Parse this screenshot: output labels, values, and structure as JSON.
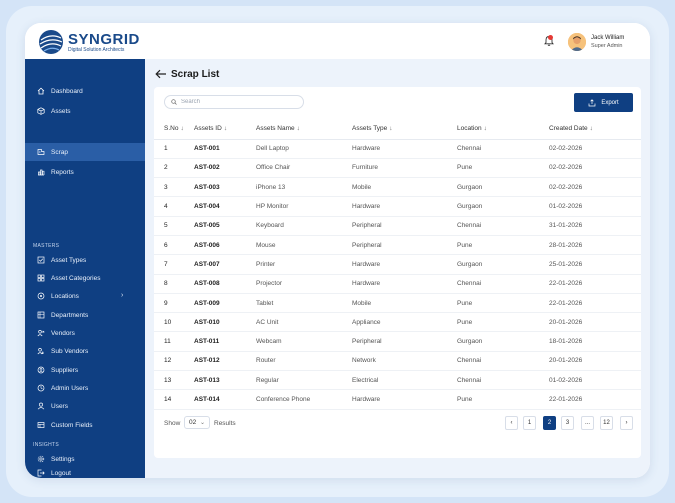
{
  "brand": {
    "name": "SYNGRID",
    "tagline": "Digital Solution Architects"
  },
  "user": {
    "name": "Jack William",
    "role": "Super Admin"
  },
  "sidebar": {
    "main_items": [
      {
        "label": "Dashboard",
        "icon": "home-icon"
      },
      {
        "label": "Assets",
        "icon": "box-icon"
      },
      {
        "label": "Scrap",
        "icon": "scrap-icon",
        "active": true
      },
      {
        "label": "Reports",
        "icon": "chart-icon"
      }
    ],
    "masters_label": "MASTERS",
    "master_items": [
      {
        "label": "Asset Types",
        "icon": "checklist-icon"
      },
      {
        "label": "Asset Categories",
        "icon": "grid-icon"
      },
      {
        "label": "Locations",
        "icon": "location-icon"
      },
      {
        "label": "Departments",
        "icon": "building-icon"
      },
      {
        "label": "Vendors",
        "icon": "vendor-icon"
      },
      {
        "label": "Sub Vendors",
        "icon": "sub-vendor-icon"
      },
      {
        "label": "Suppliers",
        "icon": "supplier-icon"
      },
      {
        "label": "Admin Users",
        "icon": "admin-users-icon"
      },
      {
        "label": "Users",
        "icon": "user-icon"
      },
      {
        "label": "Custom Fields",
        "icon": "fields-icon"
      }
    ],
    "insights_label": "INSIGHTS",
    "insight_items": [
      {
        "label": "Settings",
        "icon": "gear-icon"
      },
      {
        "label": "Logout",
        "icon": "logout-icon"
      }
    ]
  },
  "page": {
    "title": "Scrap List"
  },
  "search": {
    "placeholder": "Search"
  },
  "toolbar": {
    "export_label": "Export"
  },
  "table": {
    "headers": [
      "S.No",
      "Assets ID",
      "Assets Name",
      "Assets Type",
      "Location",
      "Created Date"
    ],
    "sort_glyph": "↓",
    "rows": [
      [
        "1",
        "AST-001",
        "Dell Laptop",
        "Hardware",
        "Chennai",
        "02-02-2026"
      ],
      [
        "2",
        "AST-002",
        "Office Chair",
        "Furniture",
        "Pune",
        "02-02-2026"
      ],
      [
        "3",
        "AST-003",
        "iPhone 13",
        "Mobile",
        "Gurgaon",
        "02-02-2026"
      ],
      [
        "4",
        "AST-004",
        "HP Monitor",
        "Hardware",
        "Gurgaon",
        "01-02-2026"
      ],
      [
        "5",
        "AST-005",
        "Keyboard",
        "Peripheral",
        "Chennai",
        "31-01-2026"
      ],
      [
        "6",
        "AST-006",
        "Mouse",
        "Peripheral",
        "Pune",
        "28-01-2026"
      ],
      [
        "7",
        "AST-007",
        "Printer",
        "Hardware",
        "Gurgaon",
        "25-01-2026"
      ],
      [
        "8",
        "AST-008",
        "Projector",
        "Hardware",
        "Chennai",
        "22-01-2026"
      ],
      [
        "9",
        "AST-009",
        "Tablet",
        "Mobile",
        "Pune",
        "22-01-2026"
      ],
      [
        "10",
        "AST-010",
        "AC Unit",
        "Appliance",
        "Pune",
        "20-01-2026"
      ],
      [
        "11",
        "AST-011",
        "Webcam",
        "Peripheral",
        "Gurgaon",
        "18-01-2026"
      ],
      [
        "12",
        "AST-012",
        "Router",
        "Network",
        "Chennai",
        "20-01-2026"
      ],
      [
        "13",
        "AST-013",
        "Regular",
        "Electrical",
        "Chennai",
        "01-02-2026"
      ],
      [
        "14",
        "AST-014",
        "Conference Phone",
        "Hardware",
        "Pune",
        "22-01-2026"
      ]
    ]
  },
  "footer": {
    "show_label": "Show",
    "page_size": "02",
    "results_label": "Results",
    "pages": [
      "‹",
      "1",
      "2",
      "3",
      "...",
      "12",
      "›"
    ],
    "active_page": "2"
  },
  "colors": {
    "primary": "#0f3f82",
    "sidebar_active": "#2a5ea6",
    "background": "#edf3fb"
  }
}
